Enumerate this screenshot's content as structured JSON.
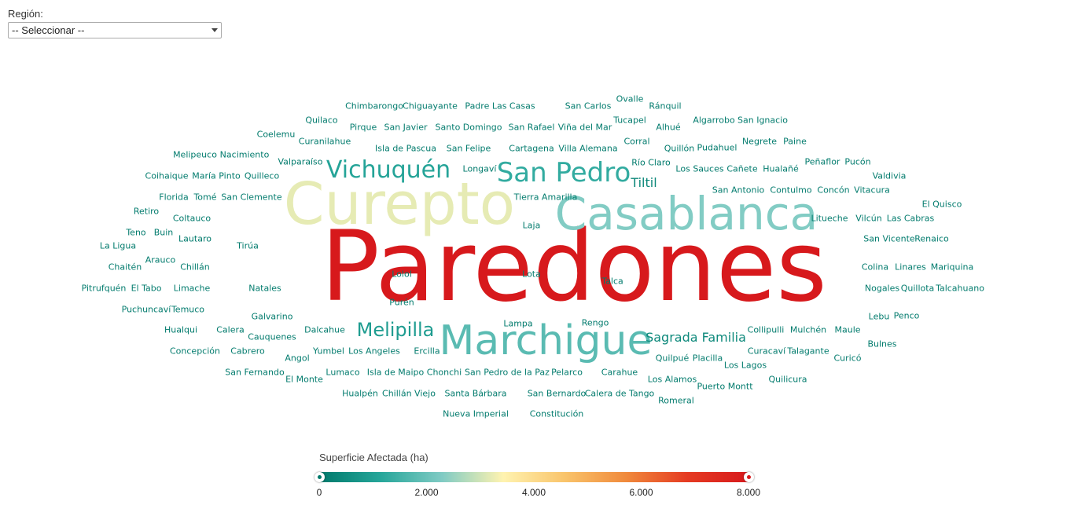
{
  "filter": {
    "label": "Región:",
    "selected": "-- Seleccionar --"
  },
  "chart_data": {
    "type": "wordcloud",
    "legend": {
      "title": "Superficie Afectada (ha)",
      "min": 0,
      "max": 8000,
      "ticks": [
        "0",
        "2.000",
        "4.000",
        "6.000",
        "8.000"
      ],
      "tick_values": [
        0,
        2000,
        4000,
        6000,
        8000
      ],
      "colors": [
        "#00796b",
        "#26a69a",
        "#80cbc4",
        "#fff3b0",
        "#f9c46b",
        "#f08a3c",
        "#e53b22",
        "#d7191c"
      ]
    },
    "words": [
      {
        "text": "Paredones",
        "value": 8000
      },
      {
        "text": "Curepto",
        "value": 3200
      },
      {
        "text": "Casablanca",
        "value": 2300
      },
      {
        "text": "Marchigue",
        "value": 1800
      },
      {
        "text": "San Pedro",
        "value": 1300
      },
      {
        "text": "Vichuquén",
        "value": 1100
      },
      {
        "text": "Melipilla",
        "value": 900
      },
      {
        "text": "Sagrada Familia",
        "value": 400
      },
      {
        "text": "Tiltil",
        "value": 350
      },
      {
        "text": "Chimbarongo",
        "value": 60
      },
      {
        "text": "Chiguayante",
        "value": 60
      },
      {
        "text": "Padre Las Casas",
        "value": 60
      },
      {
        "text": "San Carlos",
        "value": 60
      },
      {
        "text": "Ovalle",
        "value": 60
      },
      {
        "text": "Ránquil",
        "value": 60
      },
      {
        "text": "Quilaco",
        "value": 60
      },
      {
        "text": "Pirque",
        "value": 60
      },
      {
        "text": "San Javier",
        "value": 60
      },
      {
        "text": "Santo Domingo",
        "value": 60
      },
      {
        "text": "San Rafael",
        "value": 60
      },
      {
        "text": "Viña del Mar",
        "value": 60
      },
      {
        "text": "Tucapel",
        "value": 60
      },
      {
        "text": "Alhué",
        "value": 60
      },
      {
        "text": "Algarrobo",
        "value": 60
      },
      {
        "text": "San Ignacio",
        "value": 60
      },
      {
        "text": "Coelemu",
        "value": 60
      },
      {
        "text": "Curanilahue",
        "value": 60
      },
      {
        "text": "Isla de Pascua",
        "value": 60
      },
      {
        "text": "San Felipe",
        "value": 60
      },
      {
        "text": "Cartagena",
        "value": 60
      },
      {
        "text": "Villa Alemana",
        "value": 60
      },
      {
        "text": "Corral",
        "value": 60
      },
      {
        "text": "Quillón",
        "value": 60
      },
      {
        "text": "Pudahuel",
        "value": 60
      },
      {
        "text": "Negrete",
        "value": 60
      },
      {
        "text": "Paine",
        "value": 60
      },
      {
        "text": "Melipeuco",
        "value": 60
      },
      {
        "text": "Nacimiento",
        "value": 60
      },
      {
        "text": "Valparaíso",
        "value": 60
      },
      {
        "text": "Longaví",
        "value": 60
      },
      {
        "text": "Río Claro",
        "value": 60
      },
      {
        "text": "Peñaflor",
        "value": 60
      },
      {
        "text": "Pucón",
        "value": 60
      },
      {
        "text": "Coihaique",
        "value": 60
      },
      {
        "text": "María Pinto",
        "value": 60
      },
      {
        "text": "Quilleco",
        "value": 60
      },
      {
        "text": "Los Sauces",
        "value": 60
      },
      {
        "text": "Cañete",
        "value": 60
      },
      {
        "text": "Hualañé",
        "value": 60
      },
      {
        "text": "Valdivia",
        "value": 60
      },
      {
        "text": "Florida",
        "value": 60
      },
      {
        "text": "Tomé",
        "value": 60
      },
      {
        "text": "San Clemente",
        "value": 60
      },
      {
        "text": "Tierra Amarilla",
        "value": 60
      },
      {
        "text": "San Antonio",
        "value": 60
      },
      {
        "text": "Contulmo",
        "value": 60
      },
      {
        "text": "Concón",
        "value": 60
      },
      {
        "text": "Vitacura",
        "value": 60
      },
      {
        "text": "El Quisco",
        "value": 60
      },
      {
        "text": "Retiro",
        "value": 60
      },
      {
        "text": "Coltauco",
        "value": 60
      },
      {
        "text": "Litueche",
        "value": 60
      },
      {
        "text": "Vilcún",
        "value": 60
      },
      {
        "text": "Las Cabras",
        "value": 60
      },
      {
        "text": "Teno",
        "value": 60
      },
      {
        "text": "Buin",
        "value": 60
      },
      {
        "text": "Lautaro",
        "value": 60
      },
      {
        "text": "Laja",
        "value": 60
      },
      {
        "text": "San Vicente",
        "value": 60
      },
      {
        "text": "Renaico",
        "value": 60
      },
      {
        "text": "La Ligua",
        "value": 60
      },
      {
        "text": "Tirúa",
        "value": 60
      },
      {
        "text": "Arauco",
        "value": 60
      },
      {
        "text": "Chaitén",
        "value": 60
      },
      {
        "text": "Chillán",
        "value": 60
      },
      {
        "text": "Lolol",
        "value": 60
      },
      {
        "text": "Lota",
        "value": 60
      },
      {
        "text": "Colina",
        "value": 60
      },
      {
        "text": "Linares",
        "value": 60
      },
      {
        "text": "Mariquina",
        "value": 60
      },
      {
        "text": "Talca",
        "value": 60
      },
      {
        "text": "Pitrufquén",
        "value": 60
      },
      {
        "text": "El Tabo",
        "value": 60
      },
      {
        "text": "Limache",
        "value": 60
      },
      {
        "text": "Natales",
        "value": 60
      },
      {
        "text": "Nogales",
        "value": 60
      },
      {
        "text": "Quillota",
        "value": 60
      },
      {
        "text": "Talcahuano",
        "value": 60
      },
      {
        "text": "Purén",
        "value": 60
      },
      {
        "text": "Puchuncaví",
        "value": 60
      },
      {
        "text": "Temuco",
        "value": 60
      },
      {
        "text": "Galvarino",
        "value": 60
      },
      {
        "text": "Lebu",
        "value": 60
      },
      {
        "text": "Penco",
        "value": 60
      },
      {
        "text": "Lampa",
        "value": 60
      },
      {
        "text": "Rengo",
        "value": 60
      },
      {
        "text": "Hualqui",
        "value": 60
      },
      {
        "text": "Calera",
        "value": 60
      },
      {
        "text": "Dalcahue",
        "value": 60
      },
      {
        "text": "Collipulli",
        "value": 60
      },
      {
        "text": "Mulchén",
        "value": 60
      },
      {
        "text": "Maule",
        "value": 60
      },
      {
        "text": "Cauquenes",
        "value": 60
      },
      {
        "text": "Bulnes",
        "value": 60
      },
      {
        "text": "Concepción",
        "value": 60
      },
      {
        "text": "Cabrero",
        "value": 60
      },
      {
        "text": "Yumbel",
        "value": 60
      },
      {
        "text": "Los Angeles",
        "value": 60
      },
      {
        "text": "Ercilla",
        "value": 60
      },
      {
        "text": "Curacaví",
        "value": 60
      },
      {
        "text": "Talagante",
        "value": 60
      },
      {
        "text": "Angol",
        "value": 60
      },
      {
        "text": "Quilpué",
        "value": 60
      },
      {
        "text": "Placilla",
        "value": 60
      },
      {
        "text": "Curicó",
        "value": 60
      },
      {
        "text": "Los Lagos",
        "value": 60
      },
      {
        "text": "San Fernando",
        "value": 60
      },
      {
        "text": "Lumaco",
        "value": 60
      },
      {
        "text": "Isla de Maipo",
        "value": 60
      },
      {
        "text": "Chonchi",
        "value": 60
      },
      {
        "text": "San Pedro de la Paz",
        "value": 60
      },
      {
        "text": "Pelarco",
        "value": 60
      },
      {
        "text": "Carahue",
        "value": 60
      },
      {
        "text": "El Monte",
        "value": 60
      },
      {
        "text": "Los Alamos",
        "value": 60
      },
      {
        "text": "Quilicura",
        "value": 60
      },
      {
        "text": "Puerto Montt",
        "value": 60
      },
      {
        "text": "Hualpén",
        "value": 60
      },
      {
        "text": "Chillán Viejo",
        "value": 60
      },
      {
        "text": "Santa Bárbara",
        "value": 60
      },
      {
        "text": "San Bernardo",
        "value": 60
      },
      {
        "text": "Calera de Tango",
        "value": 60
      },
      {
        "text": "Romeral",
        "value": 60
      },
      {
        "text": "Nueva Imperial",
        "value": 60
      },
      {
        "text": "Constitución",
        "value": 60
      }
    ]
  }
}
